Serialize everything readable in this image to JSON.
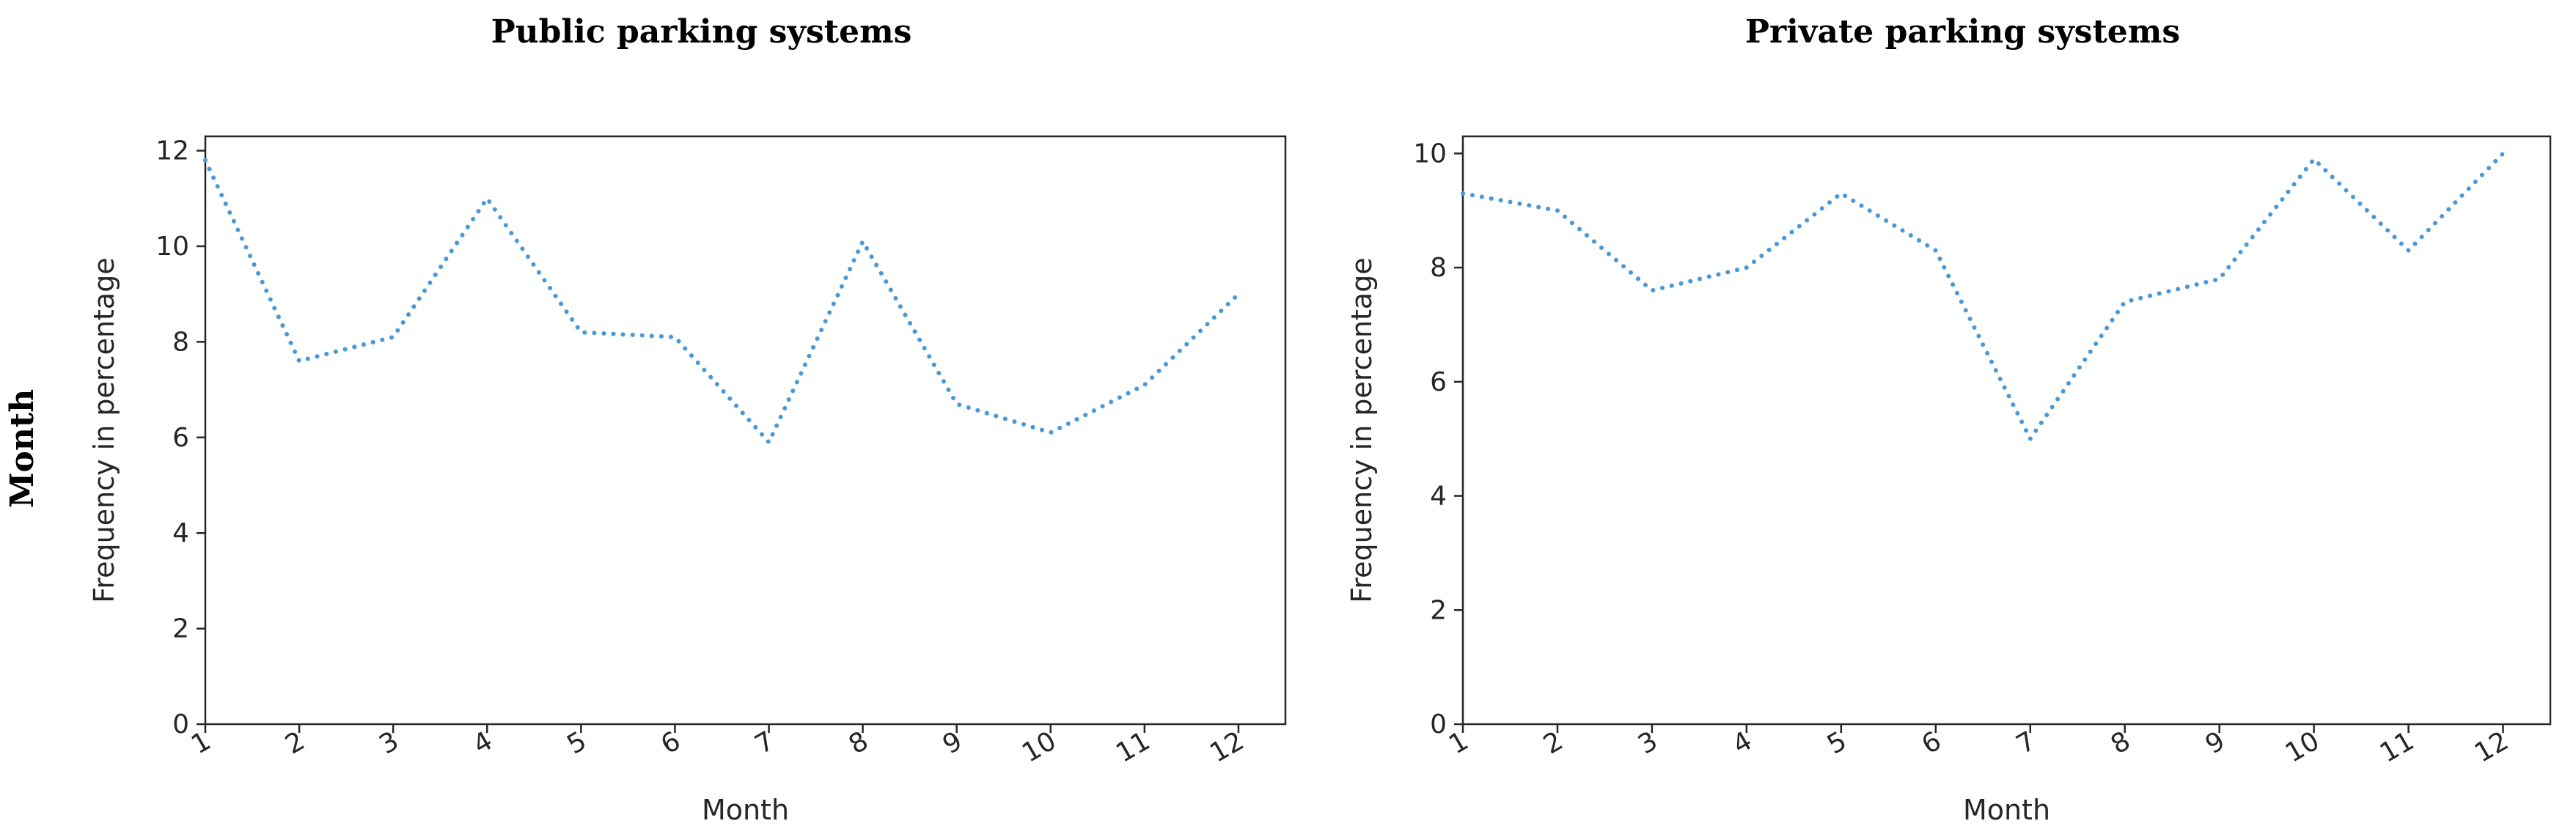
{
  "side_label": "Month",
  "chart_data": [
    {
      "type": "line",
      "title": "Public parking systems",
      "xlabel": "Month",
      "ylabel": "Frequency in percentage",
      "x": [
        1,
        2,
        3,
        4,
        5,
        6,
        7,
        8,
        9,
        10,
        11,
        12
      ],
      "x_tick_labels": [
        "1",
        "2",
        "3",
        "4",
        "5",
        "6",
        "7",
        "8",
        "9",
        "10",
        "11",
        "12"
      ],
      "y_ticks": [
        0,
        2,
        4,
        6,
        8,
        10,
        12
      ],
      "xlim": [
        1,
        12.5
      ],
      "ylim": [
        0,
        12.3
      ],
      "grid": false,
      "series": [
        {
          "color": "#4a98d6",
          "style": "dotted",
          "values": [
            11.8,
            7.6,
            8.1,
            11.0,
            8.2,
            8.1,
            5.9,
            10.1,
            6.7,
            6.1,
            7.1,
            9.0
          ]
        }
      ]
    },
    {
      "type": "line",
      "title": "Private parking systems",
      "xlabel": "Month",
      "ylabel": "Frequency in percentage",
      "x": [
        1,
        2,
        3,
        4,
        5,
        6,
        7,
        8,
        9,
        10,
        11,
        12
      ],
      "x_tick_labels": [
        "1",
        "2",
        "3",
        "4",
        "5",
        "6",
        "7",
        "8",
        "9",
        "10",
        "11",
        "12"
      ],
      "y_ticks": [
        0,
        2,
        4,
        6,
        8,
        10
      ],
      "xlim": [
        1,
        12.5
      ],
      "ylim": [
        0,
        10.3
      ],
      "grid": false,
      "series": [
        {
          "color": "#4a98d6",
          "style": "dotted",
          "values": [
            9.3,
            9.0,
            7.6,
            8.0,
            9.3,
            8.3,
            5.0,
            7.4,
            7.8,
            9.9,
            8.3,
            10.0
          ]
        }
      ]
    }
  ]
}
